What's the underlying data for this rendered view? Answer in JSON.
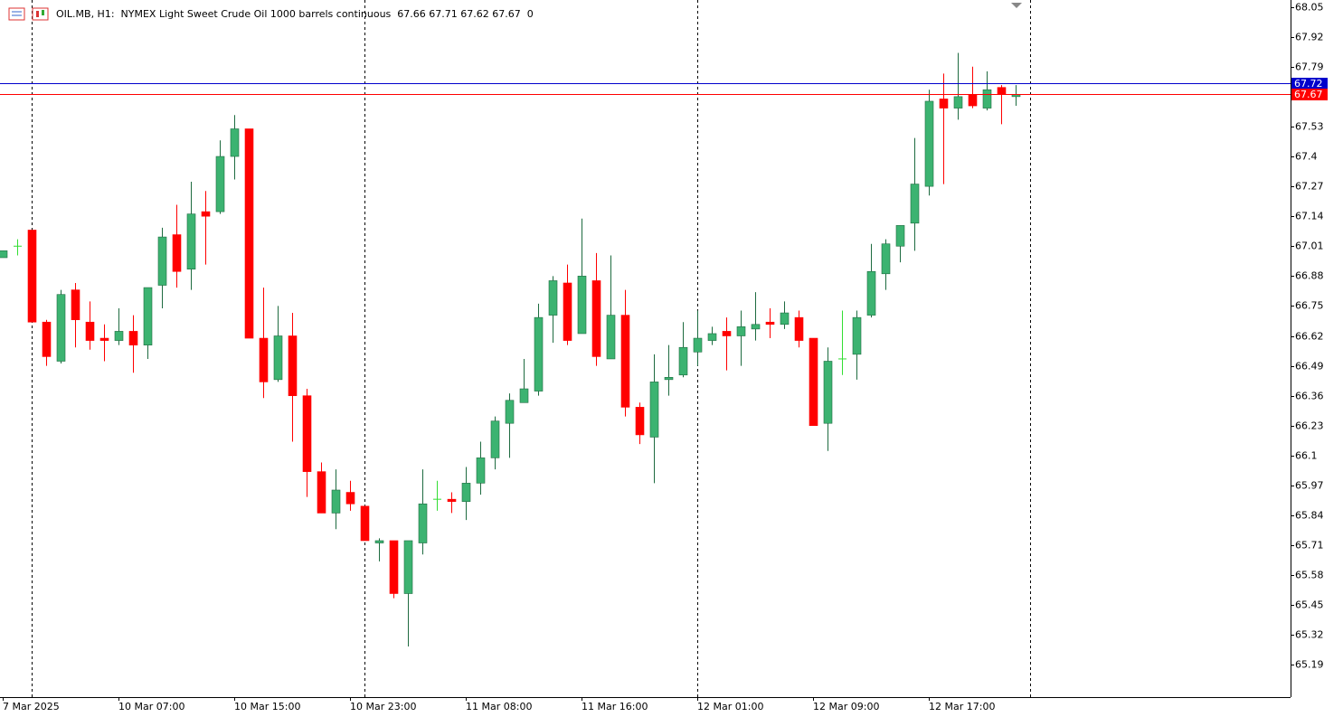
{
  "chart_data": {
    "type": "candlestick",
    "title": "OIL.MB, H1:  NYMEX Light Sweet Crude Oil 1000 barrels continuous  67.66 67.71 67.62 67.67  0",
    "categories": [
      "7 Mar 2025",
      null,
      null,
      null,
      null,
      null,
      null,
      null,
      "10 Mar 07:00",
      null,
      null,
      null,
      null,
      null,
      null,
      null,
      "10 Mar 15:00",
      null,
      null,
      null,
      null,
      null,
      null,
      null,
      "10 Mar 23:00",
      null,
      null,
      null,
      null,
      null,
      null,
      null,
      "11 Mar 08:00",
      null,
      null,
      null,
      null,
      null,
      null,
      null,
      "11 Mar 16:00",
      null,
      null,
      null,
      null,
      null,
      null,
      null,
      "12 Mar 01:00",
      null,
      null,
      null,
      null,
      null,
      null,
      null,
      "12 Mar 09:00",
      null,
      null,
      null,
      null,
      null,
      null,
      null,
      "12 Mar 17:00",
      null,
      null,
      null,
      null,
      null,
      null
    ],
    "open": [
      66.96,
      67.01,
      67.08,
      66.68,
      66.51,
      66.82,
      66.68,
      66.61,
      66.6,
      66.64,
      66.58,
      66.84,
      67.06,
      66.91,
      67.16,
      67.16,
      67.4,
      67.52,
      66.61,
      66.43,
      66.62,
      66.36,
      66.03,
      65.85,
      65.94,
      65.88,
      65.72,
      65.73,
      65.5,
      65.72,
      65.91,
      65.91,
      65.9,
      65.98,
      66.09,
      66.24,
      66.33,
      66.38,
      66.71,
      66.85,
      66.63,
      66.86,
      66.52,
      66.71,
      66.31,
      66.18,
      66.43,
      66.45,
      66.55,
      66.6,
      66.64,
      66.62,
      66.65,
      66.68,
      66.67,
      66.7,
      66.61,
      66.24,
      66.52,
      66.54,
      66.71,
      66.89,
      67.01,
      67.11,
      67.27,
      67.65,
      67.61,
      67.67,
      67.61,
      67.7,
      67.66
    ],
    "high": [
      66.99,
      67.04,
      67.08,
      66.69,
      66.82,
      66.85,
      66.77,
      66.67,
      66.74,
      66.71,
      66.83,
      67.09,
      67.19,
      67.29,
      67.25,
      67.47,
      67.58,
      67.52,
      66.83,
      66.75,
      66.72,
      66.39,
      66.07,
      66.04,
      65.99,
      65.88,
      65.74,
      65.73,
      65.73,
      66.04,
      65.99,
      65.94,
      66.05,
      66.16,
      66.27,
      66.37,
      66.52,
      66.76,
      66.88,
      66.93,
      67.13,
      66.98,
      66.97,
      66.82,
      66.33,
      66.54,
      66.58,
      66.68,
      66.73,
      66.66,
      66.7,
      66.73,
      66.81,
      66.74,
      66.77,
      66.73,
      66.61,
      66.57,
      66.73,
      66.73,
      67.02,
      67.04,
      67.1,
      67.48,
      67.69,
      67.76,
      67.85,
      67.79,
      67.77,
      67.71,
      67.71
    ],
    "low": [
      66.96,
      66.97,
      66.68,
      66.49,
      66.5,
      66.57,
      66.56,
      66.51,
      66.58,
      66.46,
      66.52,
      66.74,
      66.83,
      66.82,
      66.93,
      67.15,
      67.3,
      66.61,
      66.35,
      66.42,
      66.16,
      65.92,
      65.85,
      65.78,
      65.86,
      65.73,
      65.64,
      65.48,
      65.27,
      65.67,
      65.86,
      65.85,
      65.82,
      65.93,
      66.04,
      66.09,
      66.33,
      66.36,
      66.59,
      66.58,
      66.63,
      66.49,
      66.52,
      66.27,
      66.15,
      65.98,
      66.36,
      66.44,
      66.49,
      66.58,
      66.47,
      66.49,
      66.6,
      66.61,
      66.65,
      66.57,
      66.23,
      66.12,
      66.45,
      66.43,
      66.7,
      66.82,
      66.94,
      66.99,
      67.23,
      67.28,
      67.56,
      67.61,
      67.6,
      67.54,
      67.62
    ],
    "close": [
      66.99,
      67.01,
      66.68,
      66.53,
      66.8,
      66.69,
      66.6,
      66.6,
      66.64,
      66.58,
      66.83,
      67.05,
      66.9,
      67.15,
      67.14,
      67.4,
      67.52,
      66.61,
      66.42,
      66.62,
      66.36,
      66.03,
      65.85,
      65.95,
      65.89,
      65.73,
      65.73,
      65.5,
      65.73,
      65.89,
      65.91,
      65.9,
      65.98,
      66.09,
      66.25,
      66.34,
      66.39,
      66.7,
      66.86,
      66.6,
      66.88,
      66.53,
      66.71,
      66.31,
      66.19,
      66.42,
      66.44,
      66.57,
      66.61,
      66.63,
      66.62,
      66.66,
      66.67,
      66.67,
      66.72,
      66.6,
      66.23,
      66.51,
      66.52,
      66.7,
      66.9,
      67.02,
      67.1,
      67.28,
      67.64,
      67.61,
      67.66,
      67.62,
      67.69,
      67.67,
      67.67
    ],
    "ylim": [
      65.05,
      68.08
    ],
    "yticks": [
      68.05,
      67.92,
      67.79,
      67.53,
      67.4,
      67.27,
      67.14,
      67.01,
      66.88,
      66.75,
      66.62,
      66.49,
      66.36,
      66.23,
      66.1,
      65.97,
      65.84,
      65.71,
      65.58,
      65.45,
      65.32,
      65.19
    ],
    "up_color": "#3cb371",
    "down_color": "#ff0000",
    "doji_color": "#33dd33",
    "price_lines": [
      {
        "value": 67.72,
        "color": "#0000cc"
      },
      {
        "value": 67.67,
        "color": "#ff0000"
      }
    ]
  }
}
